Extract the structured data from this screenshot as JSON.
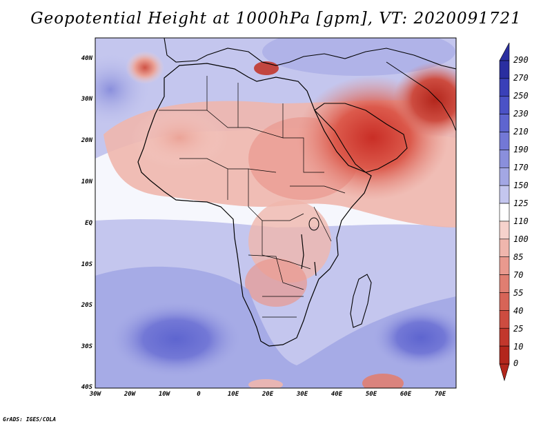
{
  "title": "Geopotential Height at 1000hPa [gpm], VT: 2020091721",
  "credit": "GrADS: IGES/COLA",
  "map": {
    "variable": "Geopotential Height",
    "level": "1000hPa",
    "units": "gpm",
    "valid_time": "2020091721",
    "lon_range": [
      -30,
      75
    ],
    "lat_range": [
      -40,
      45
    ],
    "y_ticks": [
      "40N",
      "30N",
      "20N",
      "10N",
      "EQ",
      "10S",
      "20S",
      "30S",
      "40S"
    ],
    "x_ticks": [
      "30W",
      "20W",
      "10W",
      "0",
      "10E",
      "20E",
      "30E",
      "40E",
      "50E",
      "60E",
      "70E"
    ]
  },
  "colorbar": {
    "levels": [
      "290",
      "270",
      "250",
      "230",
      "210",
      "190",
      "170",
      "150",
      "125",
      "110",
      "100",
      "85",
      "70",
      "55",
      "40",
      "25",
      "10",
      "0"
    ],
    "colors": [
      "#2a2ea0",
      "#3a40b8",
      "#4b52c6",
      "#5e65cf",
      "#7378d6",
      "#8a8fdc",
      "#a3a7e4",
      "#c4c6ee",
      "#ffffff",
      "#f6d2cc",
      "#f0b6ad",
      "#e9998e",
      "#e07e71",
      "#d76457",
      "#cd4c40",
      "#c2372c",
      "#b3261c"
    ]
  }
}
